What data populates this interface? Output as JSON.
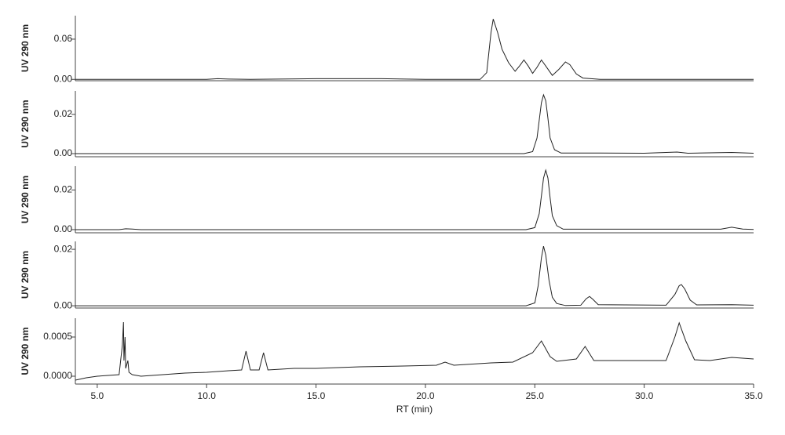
{
  "chart_data": [
    {
      "type": "line",
      "ylabel": "UV 290 nm",
      "color": "#222222",
      "xlim": [
        4,
        35
      ],
      "ylim": [
        -0.002,
        0.095
      ],
      "yticks": [
        {
          "value": 0,
          "label": "0.00"
        },
        {
          "value": 0.06,
          "label": "0.06"
        }
      ],
      "x": [
        4,
        10,
        10.5,
        11,
        12,
        15,
        18,
        20,
        22.5,
        22.8,
        23.0,
        23.1,
        23.3,
        23.5,
        23.8,
        24.1,
        24.3,
        24.5,
        24.7,
        24.9,
        25.1,
        25.3,
        25.5,
        25.8,
        26.1,
        26.4,
        26.6,
        26.9,
        27.2,
        28,
        35
      ],
      "values": [
        0,
        0,
        0.001,
        0.0005,
        0,
        0.001,
        0.001,
        0,
        0,
        0.01,
        0.07,
        0.09,
        0.07,
        0.045,
        0.025,
        0.012,
        0.02,
        0.029,
        0.02,
        0.009,
        0.018,
        0.029,
        0.02,
        0.006,
        0.015,
        0.026,
        0.022,
        0.008,
        0.002,
        0,
        0
      ]
    },
    {
      "type": "line",
      "ylabel": "UV 290 nm",
      "color": "#222222",
      "xlim": [
        4,
        35
      ],
      "ylim": [
        -0.0016,
        0.032
      ],
      "yticks": [
        {
          "value": 0,
          "label": "0.00"
        },
        {
          "value": 0.02,
          "label": "0.02"
        }
      ],
      "x": [
        4,
        24.5,
        24.9,
        25.1,
        25.2,
        25.3,
        25.4,
        25.5,
        25.6,
        25.7,
        25.9,
        26.2,
        28,
        30,
        31.5,
        32,
        34,
        35
      ],
      "values": [
        0,
        0,
        0.001,
        0.008,
        0.017,
        0.026,
        0.03,
        0.027,
        0.018,
        0.008,
        0.002,
        0.0003,
        0.0003,
        0.0002,
        0.0008,
        0.0002,
        0.0006,
        0.0002
      ]
    },
    {
      "type": "line",
      "ylabel": "UV 290 nm",
      "color": "#222222",
      "xlim": [
        4,
        35
      ],
      "ylim": [
        -0.0016,
        0.032
      ],
      "yticks": [
        {
          "value": 0,
          "label": "0.00"
        },
        {
          "value": 0.02,
          "label": "0.02"
        }
      ],
      "x": [
        4,
        6.0,
        6.3,
        6.6,
        7.0,
        24.6,
        25.0,
        25.2,
        25.3,
        25.4,
        25.5,
        25.6,
        25.7,
        25.8,
        26.0,
        26.3,
        33.5,
        34.0,
        34.5,
        35
      ],
      "values": [
        0,
        0,
        0.0004,
        0.0003,
        0,
        0,
        0.001,
        0.008,
        0.017,
        0.026,
        0.03,
        0.026,
        0.016,
        0.007,
        0.002,
        0.0002,
        0.0002,
        0.0012,
        0.0003,
        0.0001
      ]
    },
    {
      "type": "line",
      "ylabel": "UV 290 nm",
      "color": "#222222",
      "xlim": [
        4,
        35
      ],
      "ylim": [
        -0.0008,
        0.0228
      ],
      "yticks": [
        {
          "value": 0,
          "label": "0.00"
        },
        {
          "value": 0.02,
          "label": "0.02"
        }
      ],
      "x": [
        4,
        24.6,
        25.0,
        25.15,
        25.3,
        25.4,
        25.5,
        25.65,
        25.8,
        26.0,
        26.4,
        27.1,
        27.35,
        27.5,
        27.65,
        27.9,
        31.0,
        31.4,
        31.6,
        31.7,
        31.85,
        32.1,
        32.4,
        34,
        35
      ],
      "values": [
        0,
        0,
        0.001,
        0.007,
        0.017,
        0.0211,
        0.018,
        0.009,
        0.003,
        0.0008,
        0.0001,
        0.0002,
        0.0025,
        0.0033,
        0.0023,
        0.0004,
        0.0002,
        0.004,
        0.0071,
        0.0075,
        0.006,
        0.002,
        0.0003,
        0.0004,
        0.0002
      ]
    },
    {
      "type": "line",
      "ylabel": "UV 290 nm",
      "color": "#222222",
      "xlim": [
        4,
        35
      ],
      "ylim": [
        -0.0001,
        0.00074
      ],
      "yticks": [
        {
          "value": 0,
          "label": "0.0000"
        },
        {
          "value": 0.0005,
          "label": "0.0005"
        }
      ],
      "xlabel": "RT (min)",
      "xticks": [
        {
          "value": 5,
          "label": "5.0"
        },
        {
          "value": 10,
          "label": "10.0"
        },
        {
          "value": 15,
          "label": "15.0"
        },
        {
          "value": 20,
          "label": "20.0"
        },
        {
          "value": 25,
          "label": "25.0"
        },
        {
          "value": 30,
          "label": "30.0"
        },
        {
          "value": 35,
          "label": "35.0"
        }
      ],
      "x": [
        4,
        4.5,
        5,
        5.5,
        6.0,
        6.15,
        6.2,
        6.22,
        6.27,
        6.3,
        6.4,
        6.45,
        6.6,
        7,
        8,
        9,
        10,
        11,
        11.6,
        11.8,
        12.0,
        12.4,
        12.6,
        12.8,
        14,
        15,
        17,
        19,
        20.5,
        20.9,
        21.3,
        23,
        24,
        24.9,
        25.3,
        25.7,
        26,
        26.9,
        27.3,
        27.7,
        29,
        31.0,
        31.4,
        31.6,
        31.9,
        32.3,
        33,
        34,
        35
      ],
      "values": [
        -5e-05,
        -2e-05,
        0,
        1e-05,
        2e-05,
        0.0004,
        0.00069,
        0.0002,
        0.0005,
        0.0001,
        0.0002,
        5e-05,
        2e-05,
        0,
        2e-05,
        4e-05,
        5e-05,
        7e-05,
        8e-05,
        0.00032,
        8e-05,
        8e-05,
        0.0003,
        8e-05,
        0.0001,
        0.0001,
        0.00012,
        0.00013,
        0.00014,
        0.00018,
        0.00014,
        0.00017,
        0.00018,
        0.0003,
        0.00045,
        0.00025,
        0.00019,
        0.00022,
        0.00038,
        0.0002,
        0.0002,
        0.0002,
        0.0005,
        0.00068,
        0.00045,
        0.00021,
        0.0002,
        0.00024,
        0.00022
      ]
    }
  ]
}
